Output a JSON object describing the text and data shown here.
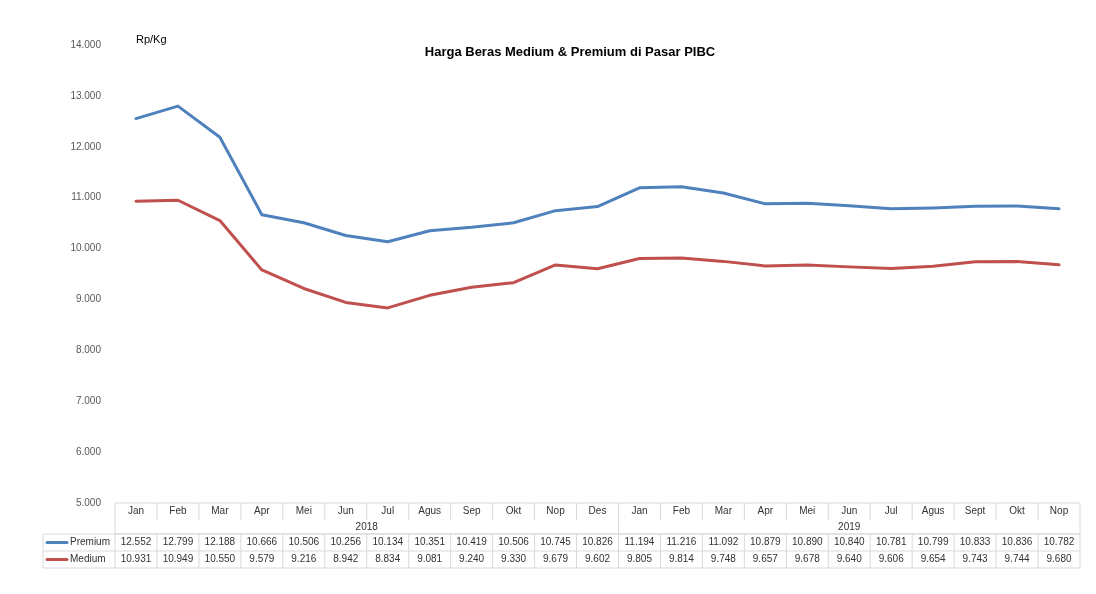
{
  "chart_data": {
    "type": "line",
    "title": "Harga Beras Medium & Premium di Pasar PIBC",
    "ylabel": "Rp/Kg",
    "categories": [
      "Jan",
      "Feb",
      "Mar",
      "Apr",
      "Mei",
      "Jun",
      "Jul",
      "Agus",
      "Sep",
      "Okt",
      "Nop",
      "Des",
      "Jan",
      "Feb",
      "Mar",
      "Apr",
      "Mei",
      "Jun",
      "Jul",
      "Agus",
      "Sept",
      "Okt",
      "Nop"
    ],
    "annotations": [
      "2018",
      "2019"
    ],
    "series": [
      {
        "name": "Premium",
        "color": "#4f81bd",
        "values": [
          12552,
          12799,
          12188,
          10666,
          10506,
          10256,
          10134,
          10351,
          10419,
          10506,
          10745,
          10826,
          11194,
          11216,
          11092,
          10879,
          10890,
          10840,
          10781,
          10799,
          10833,
          10836,
          10782
        ],
        "value_labels": [
          "12.552",
          "12.799",
          "12.188",
          "10.666",
          "10.506",
          "10.256",
          "10.134",
          "10.351",
          "10.419",
          "10.506",
          "10.745",
          "10.826",
          "11.194",
          "11.216",
          "11.092",
          "10.879",
          "10.890",
          "10.840",
          "10.781",
          "10.799",
          "10.833",
          "10.836",
          "10.782"
        ]
      },
      {
        "name": "Medium",
        "color": "#c0504d",
        "values": [
          10931,
          10949,
          10550,
          9579,
          9216,
          8942,
          8834,
          9081,
          9240,
          9330,
          9679,
          9602,
          9805,
          9814,
          9748,
          9657,
          9678,
          9640,
          9606,
          9654,
          9743,
          9744,
          9680
        ],
        "value_labels": [
          "10.931",
          "10.949",
          "10.550",
          "9.579",
          "9.216",
          "8.942",
          "8.834",
          "9.081",
          "9.240",
          "9.330",
          "9.679",
          "9.602",
          "9.805",
          "9.814",
          "9.748",
          "9.657",
          "9.678",
          "9.640",
          "9.606",
          "9.654",
          "9.743",
          "9.744",
          "9.680"
        ]
      }
    ],
    "ylim": [
      5000,
      14000
    ],
    "yticks": [
      {
        "value": 5000,
        "label": "5.000"
      },
      {
        "value": 6000,
        "label": "6.000"
      },
      {
        "value": 7000,
        "label": "7.000"
      },
      {
        "value": 8000,
        "label": "8.000"
      },
      {
        "value": 9000,
        "label": "9.000"
      },
      {
        "value": 10000,
        "label": "10.000"
      },
      {
        "value": 11000,
        "label": "11.000"
      },
      {
        "value": 12000,
        "label": "12.000"
      },
      {
        "value": 13000,
        "label": "13.000"
      },
      {
        "value": 14000,
        "label": "14.000"
      }
    ],
    "grid": false,
    "legend": "bottom",
    "marker": "none",
    "line_style": "solid"
  }
}
